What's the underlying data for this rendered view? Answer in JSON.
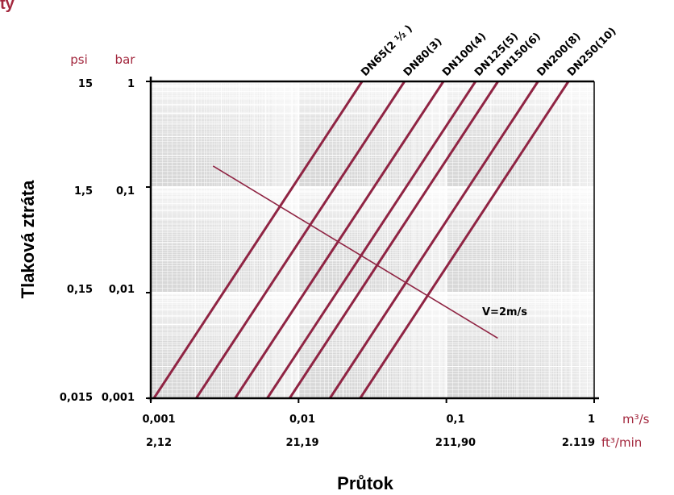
{
  "title_fragment": "ty",
  "colors": {
    "accent": "#a3283e",
    "series": "#8f2443",
    "velocity_line": "#8f2443",
    "plot_bg": "#d8d8d8",
    "grid": "#ffffff",
    "axis": "#000000"
  },
  "units": {
    "psi": "psi",
    "bar": "bar",
    "m3s": "m³/s",
    "ft3min": "ft³/min"
  },
  "chart_data": {
    "type": "line",
    "xlabel": "Průtok",
    "ylabel": "Tlaková ztráta",
    "x_scale": "log",
    "y_scale": "log",
    "xlim": [
      0.001,
      1
    ],
    "ylim": [
      0.001,
      1
    ],
    "grid": true,
    "x_ticks": [
      {
        "m3s": "0,001",
        "ft3min": "2,12"
      },
      {
        "m3s": "0,01",
        "ft3min": "21,19"
      },
      {
        "m3s": "0,1",
        "ft3min": "211,90"
      },
      {
        "m3s": "1",
        "ft3min": "2.119"
      }
    ],
    "y_ticks": [
      {
        "psi": "15",
        "bar": "1"
      },
      {
        "psi": "1,5",
        "bar": "0,1"
      },
      {
        "psi": "0,15",
        "bar": "0,01"
      },
      {
        "psi": "0,015",
        "bar": "0,001"
      }
    ],
    "series": [
      {
        "name": "DN65(2 ½ )",
        "x": [
          0.00105,
          0.0269
        ],
        "y": [
          0.001,
          1
        ]
      },
      {
        "name": "DN80(3)",
        "x": [
          0.00203,
          0.0521
        ],
        "y": [
          0.001,
          1
        ]
      },
      {
        "name": "DN100(4)",
        "x": [
          0.00372,
          0.0955
        ],
        "y": [
          0.001,
          1
        ]
      },
      {
        "name": "DN125(5)",
        "x": [
          0.00614,
          0.1575
        ],
        "y": [
          0.001,
          1
        ]
      },
      {
        "name": "DN150(6)",
        "x": [
          0.0087,
          0.2234
        ],
        "y": [
          0.001,
          1
        ]
      },
      {
        "name": "DN200(8)",
        "x": [
          0.0163,
          0.4168
        ],
        "y": [
          0.001,
          1
        ]
      },
      {
        "name": "DN250(10)",
        "x": [
          0.0261,
          0.6693
        ],
        "y": [
          0.001,
          1
        ]
      }
    ],
    "annotation": {
      "label": "V=2m/s",
      "x": [
        0.00264,
        0.2225
      ],
      "y": [
        0.158,
        0.00371
      ]
    }
  }
}
